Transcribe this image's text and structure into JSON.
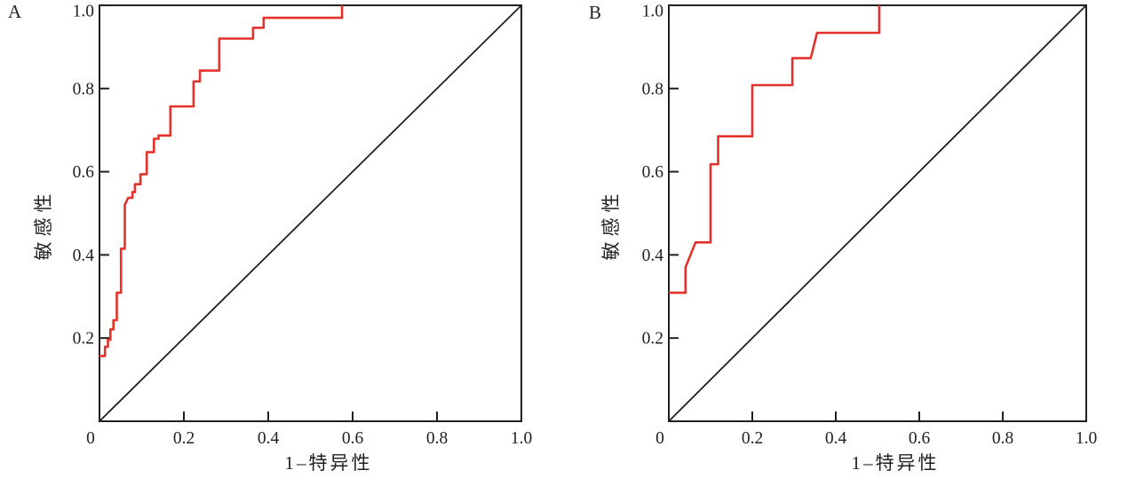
{
  "figure": {
    "background": "#ffffff",
    "frame_color": "#231f20",
    "text_color": "#231f20",
    "curve_color": "#e4312b"
  },
  "chart_data": [
    {
      "type": "line",
      "subtype": "roc_step_curve",
      "panel_label": "A",
      "xlabel": "1–特异性",
      "ylabel": "敏感性",
      "xlim": [
        0,
        1
      ],
      "ylim": [
        0,
        1
      ],
      "grid": false,
      "legend": "none",
      "x_tick_labels": [
        {
          "value": 0,
          "text": "0"
        },
        {
          "value": 0.2,
          "text": "0.2"
        },
        {
          "value": 0.4,
          "text": "0.4"
        },
        {
          "value": 0.6,
          "text": "0.6"
        },
        {
          "value": 0.8,
          "text": "0.8"
        },
        {
          "value": 1,
          "text": "1.0"
        }
      ],
      "y_tick_labels": [
        {
          "value": 0.2,
          "text": "0.2"
        },
        {
          "value": 0.4,
          "text": "0.4"
        },
        {
          "value": 0.6,
          "text": "0.6"
        },
        {
          "value": 0.8,
          "text": "0.8"
        },
        {
          "value": 1,
          "text": "1.0"
        }
      ],
      "x_tick_marks": [
        0.2,
        0.4,
        0.6,
        0.8
      ],
      "y_tick_marks": [
        0.2,
        0.4,
        0.6,
        0.8,
        1
      ],
      "series": [
        {
          "name": "roc_curve",
          "color": "#e4312b",
          "points": [
            [
              0,
              0.157
            ],
            [
              0.013,
              0.157
            ],
            [
              0.013,
              0.179
            ],
            [
              0.02,
              0.179
            ],
            [
              0.02,
              0.196
            ],
            [
              0.026,
              0.196
            ],
            [
              0.026,
              0.221
            ],
            [
              0.033,
              0.221
            ],
            [
              0.033,
              0.243
            ],
            [
              0.041,
              0.243
            ],
            [
              0.041,
              0.309
            ],
            [
              0.051,
              0.309
            ],
            [
              0.051,
              0.415
            ],
            [
              0.06,
              0.415
            ],
            [
              0.06,
              0.52
            ],
            [
              0.068,
              0.537
            ],
            [
              0.078,
              0.537
            ],
            [
              0.078,
              0.551
            ],
            [
              0.084,
              0.551
            ],
            [
              0.084,
              0.57
            ],
            [
              0.097,
              0.57
            ],
            [
              0.097,
              0.594
            ],
            [
              0.112,
              0.594
            ],
            [
              0.112,
              0.647
            ],
            [
              0.129,
              0.647
            ],
            [
              0.129,
              0.679
            ],
            [
              0.14,
              0.679
            ],
            [
              0.14,
              0.687
            ],
            [
              0.168,
              0.687
            ],
            [
              0.168,
              0.757
            ],
            [
              0.223,
              0.757
            ],
            [
              0.223,
              0.817
            ],
            [
              0.238,
              0.817
            ],
            [
              0.238,
              0.843
            ],
            [
              0.284,
              0.843
            ],
            [
              0.284,
              0.92
            ],
            [
              0.364,
              0.92
            ],
            [
              0.364,
              0.946
            ],
            [
              0.389,
              0.946
            ],
            [
              0.389,
              0.97
            ],
            [
              0.575,
              0.97
            ],
            [
              0.575,
              1.0
            ]
          ]
        },
        {
          "name": "reference_diagonal",
          "color": "#231f20",
          "points": [
            [
              0,
              0
            ],
            [
              1,
              1
            ]
          ]
        }
      ]
    },
    {
      "type": "line",
      "subtype": "roc_step_curve",
      "panel_label": "B",
      "xlabel": "1–特异性",
      "ylabel": "敏感性",
      "xlim": [
        0,
        1
      ],
      "ylim": [
        0,
        1
      ],
      "grid": false,
      "legend": "none",
      "x_tick_labels": [
        {
          "value": 0,
          "text": "0"
        },
        {
          "value": 0.2,
          "text": "0.2"
        },
        {
          "value": 0.4,
          "text": "0.4"
        },
        {
          "value": 0.6,
          "text": "0.6"
        },
        {
          "value": 0.8,
          "text": "0.8"
        },
        {
          "value": 1,
          "text": "1.0"
        }
      ],
      "y_tick_labels": [
        {
          "value": 0.2,
          "text": "0.2"
        },
        {
          "value": 0.4,
          "text": "0.4"
        },
        {
          "value": 0.6,
          "text": "0.6"
        },
        {
          "value": 0.8,
          "text": "0.8"
        },
        {
          "value": 1,
          "text": "1.0"
        }
      ],
      "x_tick_marks": [
        0.2,
        0.4,
        0.6,
        0.8
      ],
      "y_tick_marks": [
        0.2,
        0.4,
        0.6,
        0.8,
        1
      ],
      "series": [
        {
          "name": "roc_curve",
          "color": "#e4312b",
          "points": [
            [
              0,
              0.309
            ],
            [
              0.04,
              0.309
            ],
            [
              0.04,
              0.37
            ],
            [
              0.064,
              0.43
            ],
            [
              0.1,
              0.43
            ],
            [
              0.1,
              0.618
            ],
            [
              0.118,
              0.618
            ],
            [
              0.118,
              0.685
            ],
            [
              0.2,
              0.685
            ],
            [
              0.2,
              0.808
            ],
            [
              0.296,
              0.808
            ],
            [
              0.296,
              0.873
            ],
            [
              0.34,
              0.873
            ],
            [
              0.355,
              0.934
            ],
            [
              0.504,
              0.934
            ],
            [
              0.504,
              1.0
            ]
          ]
        },
        {
          "name": "reference_diagonal",
          "color": "#231f20",
          "points": [
            [
              0,
              0
            ],
            [
              1,
              1
            ]
          ]
        }
      ]
    }
  ]
}
